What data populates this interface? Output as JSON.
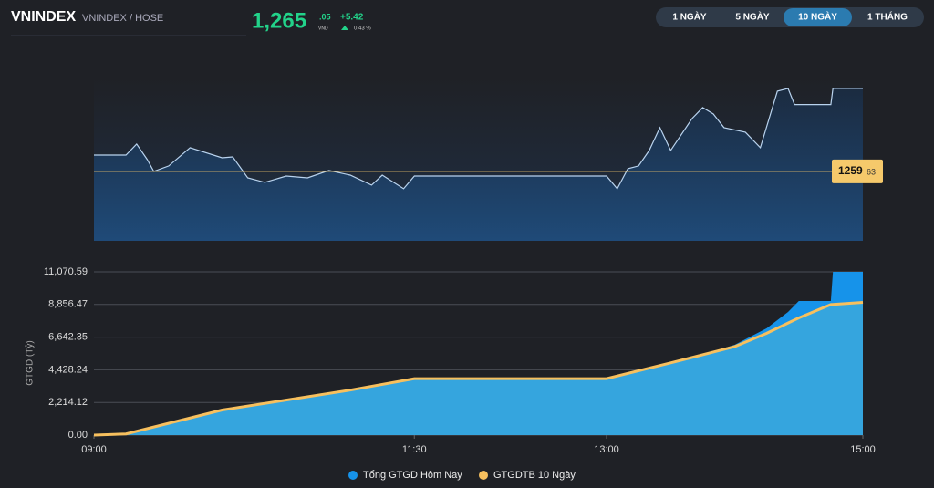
{
  "header": {
    "symbol": "VNINDEX",
    "exchange": "VNINDEX / HOSE",
    "price_main": "1,265",
    "price_decimal": ".05",
    "currency": "VND",
    "change": "+5.42",
    "change_pct": "0.43 %"
  },
  "tabs": {
    "items": [
      "1 NGÀY",
      "5 NGÀY",
      "10 NGÀY",
      "1 THÁNG"
    ],
    "active": 2
  },
  "chart_data": [
    {
      "type": "line",
      "x": [
        "09:00",
        "09:15",
        "09:20",
        "09:25",
        "09:28",
        "09:35",
        "09:45",
        "10:00",
        "10:05",
        "10:12",
        "10:20",
        "10:30",
        "10:40",
        "10:50",
        "11:00",
        "11:10",
        "11:15",
        "11:25",
        "11:30",
        "13:00",
        "13:05",
        "13:10",
        "13:15",
        "13:20",
        "13:25",
        "13:30",
        "13:40",
        "13:45",
        "13:50",
        "13:55",
        "14:05",
        "14:12",
        "14:20",
        "14:25",
        "14:28",
        "14:45",
        "14:46",
        "15:00"
      ],
      "series": [
        {
          "color": "#b9d3ee",
          "values": [
            1260.7,
            1260.7,
            1261.42,
            1260.4,
            1259.63,
            1259.99,
            1261.18,
            1260.52,
            1260.58,
            1259.21,
            1258.92,
            1259.33,
            1259.21,
            1259.69,
            1259.39,
            1258.74,
            1259.39,
            1258.5,
            1259.33,
            1259.33,
            1258.5,
            1259.81,
            1259.99,
            1261.0,
            1262.49,
            1261.0,
            1263.08,
            1263.8,
            1263.38,
            1262.49,
            1262.19,
            1261.18,
            1264.87,
            1265.05,
            1264.0,
            1264.0,
            1265.05,
            1265.05
          ]
        }
      ],
      "xlim": [
        "09:00",
        "15:00"
      ],
      "ylim": [
        1255.1,
        1265.76
      ],
      "reference": {
        "value": 1259.63,
        "label": "1259",
        "label_decimal": "63",
        "color": "#f5c96b"
      }
    },
    {
      "type": "area",
      "y_label": "GTGD (Tỷ)",
      "x": [
        "09:00",
        "09:15",
        "10:00",
        "11:00",
        "11:30",
        "13:00",
        "13:30",
        "14:00",
        "14:15",
        "14:25",
        "14:30",
        "14:45",
        "14:46",
        "15:00"
      ],
      "series": [
        {
          "name": "Tổng GTGD Hôm Nay",
          "color": "#1693ea",
          "values": [
            60,
            100,
            1610,
            2905,
            3525,
            3525,
            4760,
            6120,
            7240,
            8350,
            9090,
            9090,
            11070.59,
            11070.59
          ]
        },
        {
          "name": "GTGDTB 10 Ngày",
          "color": "#f7c05e",
          "fill": "#35a5de",
          "values": [
            0,
            80,
            1700,
            3050,
            3830,
            3830,
            4900,
            6000,
            6900,
            7600,
            7950,
            8850,
            8860,
            9000
          ]
        }
      ],
      "xlim": [
        "09:00",
        "15:00"
      ],
      "xticks": [
        "09:00",
        "11:30",
        "13:00",
        "15:00"
      ],
      "ylim": [
        0,
        11070.59
      ],
      "yticks": [
        {
          "value": 0,
          "label": "0.00"
        },
        {
          "value": 2214.12,
          "label": "2,214.12"
        },
        {
          "value": 4428.24,
          "label": "4,428.24"
        },
        {
          "value": 6642.35,
          "label": "6,642.35"
        },
        {
          "value": 8856.47,
          "label": "8,856.47"
        },
        {
          "value": 11070.59,
          "label": "11,070.59"
        }
      ],
      "grid": true
    }
  ]
}
